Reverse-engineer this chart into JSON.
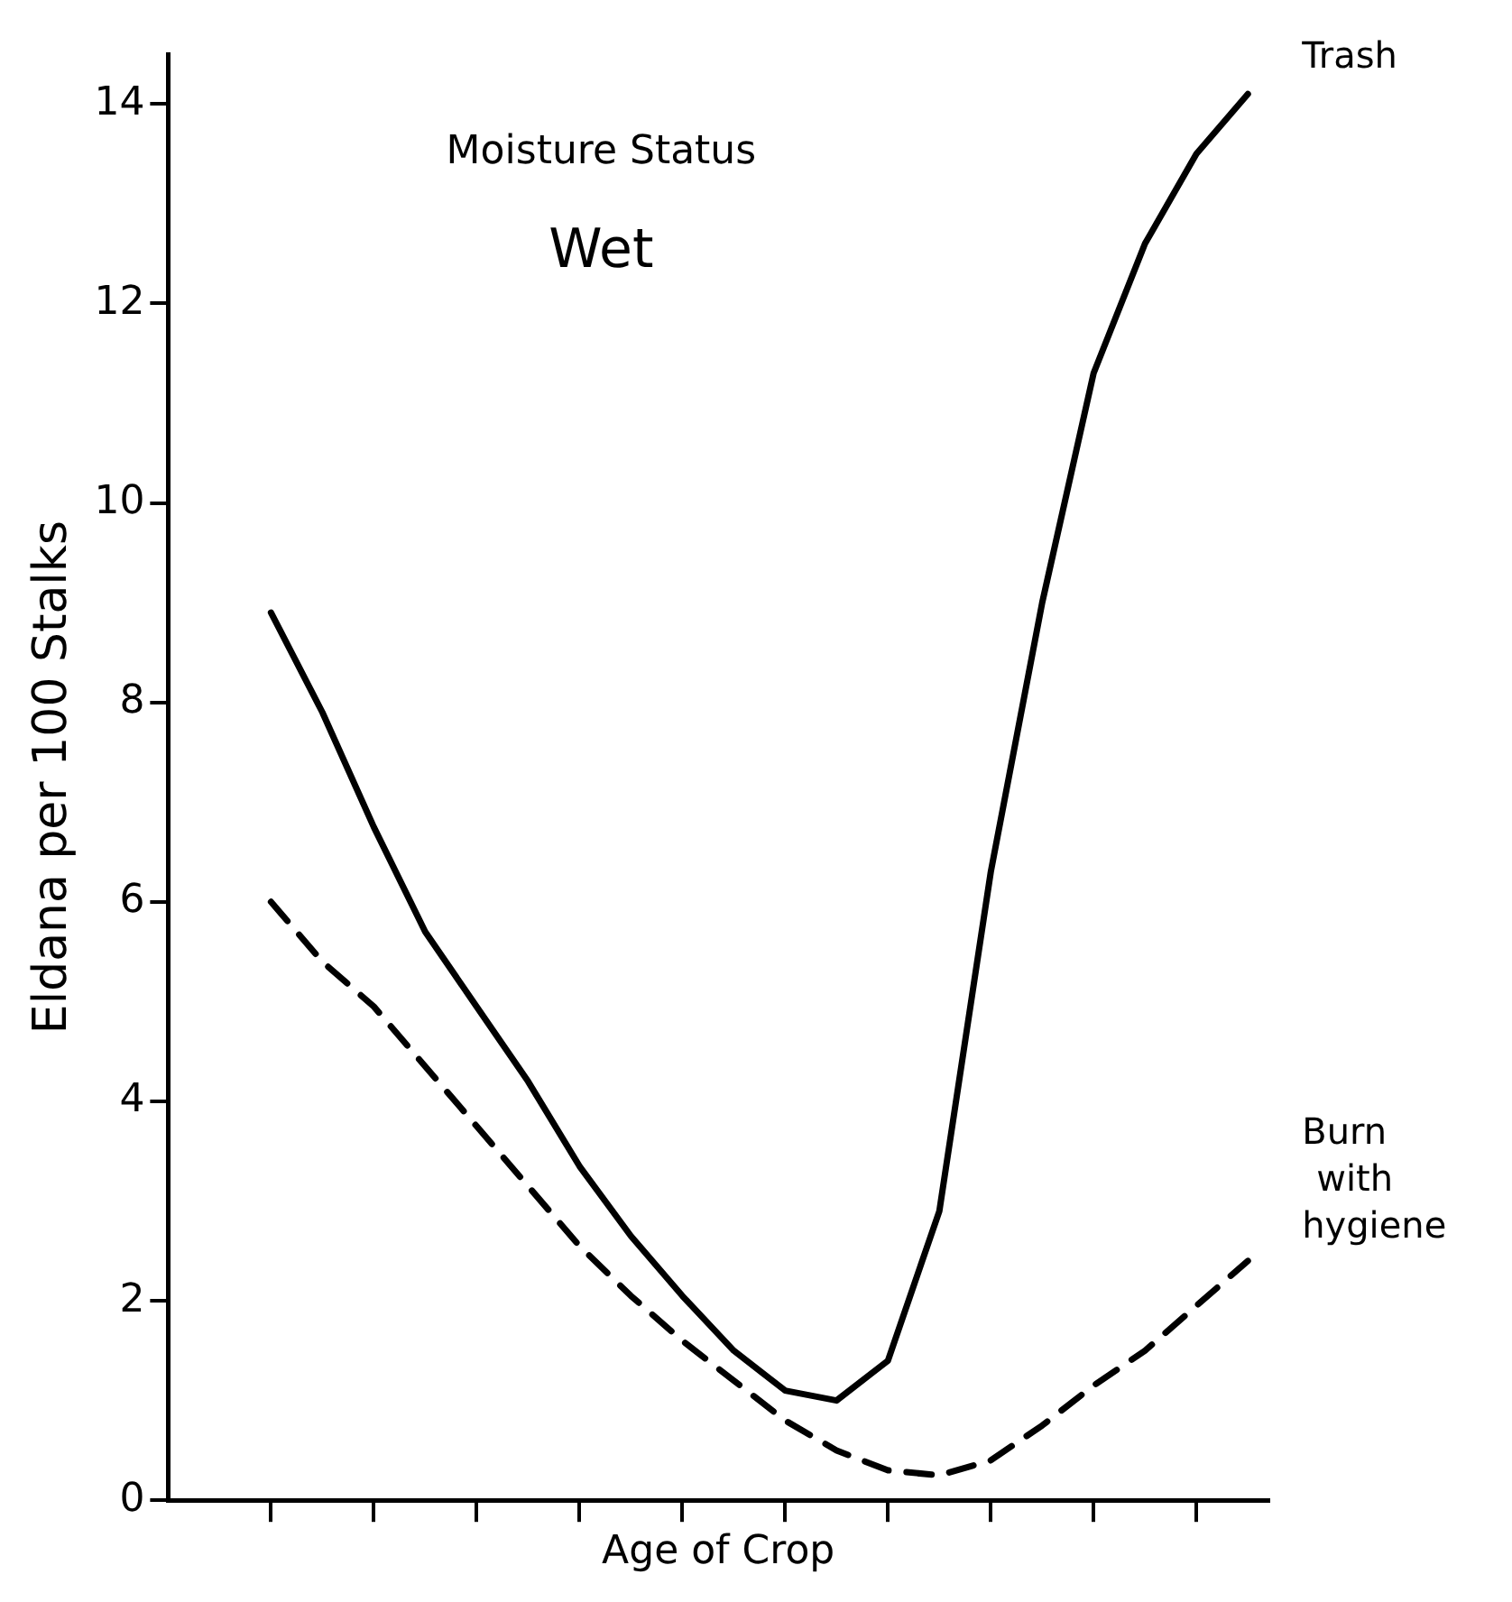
{
  "chart_data": {
    "type": "line",
    "annotations": [
      "Moisture Status",
      "Wet"
    ],
    "xlabel": "Age of Crop",
    "ylabel": "Eldana per 100 Stalks",
    "categories": [
      null,
      null,
      null,
      null,
      null,
      null,
      null,
      null,
      null,
      null,
      null,
      null,
      null,
      null,
      null,
      null,
      null,
      null,
      null,
      null
    ],
    "ylim": [
      0,
      14.5
    ],
    "yticks": [
      0,
      2,
      4,
      6,
      8,
      10,
      12,
      14
    ],
    "tick_labels": "y",
    "grid": false,
    "legend": false,
    "marker": "none",
    "series": [
      {
        "name": "Trash",
        "color": "#000000",
        "line_style": "solid",
        "values": [
          8.9,
          7.9,
          6.75,
          5.7,
          4.95,
          4.2,
          3.35,
          2.65,
          2.05,
          1.5,
          1.1,
          1.0,
          1.4,
          2.9,
          6.3,
          9.0,
          11.3,
          12.6,
          13.5,
          14.1
        ]
      },
      {
        "name": "Burn with hygiene",
        "color": "#000000",
        "line_style": "dashed",
        "values": [
          6.0,
          5.4,
          4.95,
          4.35,
          3.75,
          3.15,
          2.55,
          2.05,
          1.6,
          1.2,
          0.8,
          0.5,
          0.3,
          0.25,
          0.4,
          0.75,
          1.15,
          1.5,
          1.95,
          2.4
        ]
      }
    ]
  }
}
